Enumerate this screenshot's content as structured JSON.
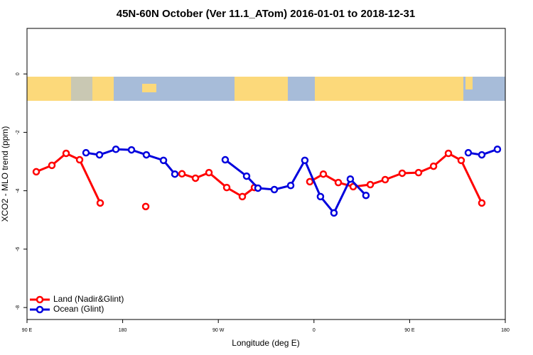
{
  "chart_data": {
    "type": "line",
    "title": "45N-60N October (Ver 11.1_ATom)   2016-01-01 to 2018-12-31",
    "x_label": "Longitude (deg E)",
    "y_label": "XCO2 - MLO trend (ppm)",
    "xlim": [
      90,
      540
    ],
    "ylim": [
      -8.41,
      1.56
    ],
    "xticks": [
      {
        "value": 90,
        "label": "90 E"
      },
      180,
      {
        "value": 270,
        "label": "90 W"
      },
      {
        "value": 360,
        "label": "0"
      },
      {
        "value": 450,
        "label": "90 E"
      },
      {
        "value": 540,
        "label": "180"
      }
    ],
    "yticks": [
      0,
      -2,
      -4,
      -6,
      -8
    ],
    "legend": "bottom-left",
    "series": [
      {
        "name": "Land (Nadir&Glint)",
        "color": "#ff0000",
        "x": [
          98.7,
          113.4,
          126.8,
          139.5,
          158.9,
          null,
          201.7,
          null,
          235.8,
          248.5,
          261.2,
          277.9,
          292.6,
          304.0,
          null,
          356.1,
          368.8,
          382.9,
          396.9,
          413.0,
          427.0,
          443.0,
          458.4,
          472.5,
          486.5,
          498.5,
          517.9
        ],
        "values": [
          -3.35,
          -3.13,
          -2.72,
          -2.94,
          -4.42,
          null,
          -4.54,
          null,
          -3.42,
          -3.57,
          -3.38,
          -3.89,
          -4.2,
          -3.89,
          null,
          -3.69,
          -3.43,
          -3.72,
          -3.86,
          -3.79,
          -3.62,
          -3.4,
          -3.38,
          -3.16,
          -2.72,
          -2.96,
          -4.42
        ]
      },
      {
        "name": "Ocean (Glint)",
        "color": "#0000dd",
        "x": [
          145.5,
          158.2,
          173.6,
          188.3,
          202.3,
          218.4,
          229.1,
          null,
          276.5,
          296.6,
          307.3,
          322.7,
          338.1,
          351.4,
          366.1,
          378.8,
          394.2,
          408.9,
          null,
          505.2,
          517.9,
          532.6
        ],
        "values": [
          -2.7,
          -2.77,
          -2.58,
          -2.6,
          -2.77,
          -2.96,
          -3.43,
          null,
          -2.94,
          -3.5,
          -3.91,
          -3.96,
          -3.82,
          -2.96,
          -4.2,
          -4.76,
          -3.6,
          -4.16,
          null,
          -2.7,
          -2.77,
          -2.58
        ]
      }
    ]
  }
}
